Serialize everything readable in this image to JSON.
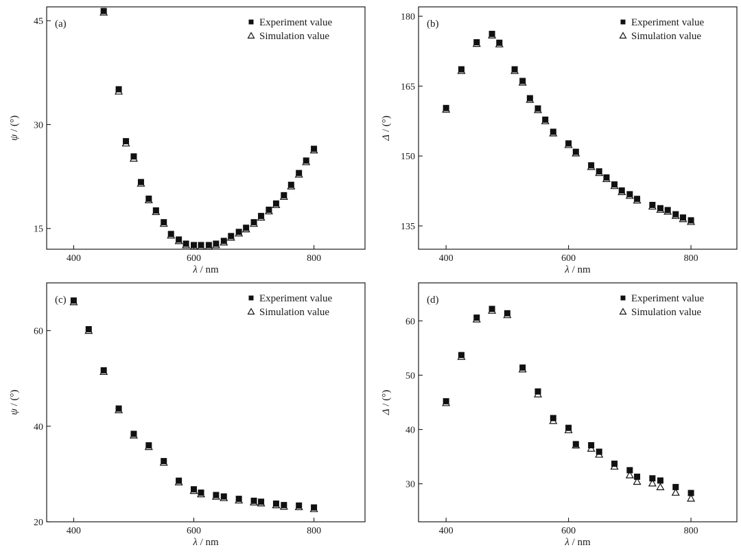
{
  "chart_data": [
    {
      "type": "scatter",
      "panel_label": "(a)",
      "xlabel_var": "λ",
      "xlabel_unit": " / nm",
      "ylabel_var": "ψ",
      "ylabel_unit": " / (°)",
      "xlim": [
        355,
        885
      ],
      "ylim": [
        12,
        47
      ],
      "xticks": [
        400,
        600,
        800
      ],
      "yticks": [
        15,
        30,
        45
      ],
      "legend_position": "top-right",
      "series": [
        {
          "name": "Experiment value",
          "marker": "square",
          "x": [
            450,
            475,
            487,
            500,
            512,
            525,
            537,
            550,
            562,
            575,
            587,
            600,
            612,
            625,
            637,
            650,
            662,
            675,
            687,
            700,
            712,
            725,
            737,
            750,
            762,
            775,
            787,
            800
          ],
          "y": [
            46.4,
            35.1,
            27.6,
            25.4,
            21.7,
            19.3,
            17.6,
            15.9,
            14.2,
            13.4,
            12.8,
            12.6,
            12.6,
            12.6,
            12.8,
            13.2,
            13.9,
            14.5,
            15.1,
            15.9,
            16.8,
            17.7,
            18.6,
            19.8,
            21.3,
            23.0,
            24.8,
            26.5
          ]
        },
        {
          "name": "Simulation value",
          "marker": "triangle",
          "x": [
            450,
            475,
            487,
            500,
            512,
            525,
            537,
            550,
            562,
            575,
            587,
            600,
            612,
            625,
            637,
            650,
            662,
            675,
            687,
            700,
            712,
            725,
            737,
            750,
            762,
            775,
            787,
            800
          ],
          "y": [
            46.2,
            34.8,
            27.3,
            25.1,
            21.5,
            19.1,
            17.4,
            15.7,
            14.0,
            13.2,
            12.6,
            12.4,
            12.4,
            12.4,
            12.6,
            13.0,
            13.7,
            14.3,
            14.9,
            15.7,
            16.6,
            17.5,
            18.4,
            19.6,
            21.1,
            22.8,
            24.6,
            26.3
          ]
        }
      ]
    },
    {
      "type": "scatter",
      "panel_label": "(b)",
      "xlabel_var": "λ",
      "xlabel_unit": " / nm",
      "ylabel_var": "Δ",
      "ylabel_unit": " / (°)",
      "xlim": [
        355,
        875
      ],
      "ylim": [
        130,
        182
      ],
      "xticks": [
        400,
        600,
        800
      ],
      "yticks": [
        135,
        150,
        165,
        180
      ],
      "legend_position": "top-right",
      "series": [
        {
          "name": "Experiment value",
          "marker": "square",
          "x": [
            400,
            425,
            450,
            475,
            487,
            512,
            525,
            537,
            550,
            562,
            575,
            600,
            612,
            637,
            650,
            662,
            675,
            687,
            700,
            712,
            737,
            750,
            762,
            775,
            787,
            800
          ],
          "y": [
            160.3,
            168.6,
            174.4,
            176.2,
            174.3,
            168.6,
            166.1,
            162.4,
            160.2,
            157.8,
            155.2,
            152.7,
            150.9,
            148.0,
            146.7,
            145.4,
            143.9,
            142.6,
            141.8,
            140.8,
            139.5,
            138.8,
            138.4,
            137.5,
            136.8,
            136.2
          ]
        },
        {
          "name": "Simulation value",
          "marker": "triangle",
          "x": [
            400,
            425,
            450,
            475,
            487,
            512,
            525,
            537,
            550,
            562,
            575,
            600,
            612,
            637,
            650,
            662,
            675,
            687,
            700,
            712,
            737,
            750,
            762,
            775,
            787,
            800
          ],
          "y": [
            160.0,
            168.3,
            174.1,
            175.9,
            174.0,
            168.3,
            165.8,
            162.1,
            159.9,
            157.5,
            154.9,
            152.4,
            150.6,
            147.7,
            146.4,
            145.1,
            143.6,
            142.3,
            141.5,
            140.5,
            139.2,
            138.5,
            138.1,
            137.2,
            136.5,
            135.9
          ]
        }
      ]
    },
    {
      "type": "scatter",
      "panel_label": "(c)",
      "xlabel_var": "λ",
      "xlabel_unit": " / nm",
      "ylabel_var": "ψ",
      "ylabel_unit": " / (°)",
      "xlim": [
        355,
        885
      ],
      "ylim": [
        20,
        70
      ],
      "xticks": [
        400,
        600,
        800
      ],
      "yticks": [
        20,
        40,
        60
      ],
      "legend_position": "top-right",
      "series": [
        {
          "name": "Experiment value",
          "marker": "square",
          "x": [
            400,
            425,
            450,
            475,
            500,
            525,
            550,
            575,
            600,
            612,
            637,
            650,
            675,
            700,
            712,
            737,
            750,
            775,
            800
          ],
          "y": [
            66.3,
            60.3,
            51.7,
            43.7,
            38.4,
            36.0,
            32.7,
            28.6,
            26.8,
            26.1,
            25.6,
            25.3,
            24.8,
            24.4,
            24.2,
            23.8,
            23.5,
            23.4,
            23.0
          ]
        },
        {
          "name": "Simulation value",
          "marker": "triangle",
          "x": [
            400,
            425,
            450,
            475,
            500,
            525,
            550,
            575,
            600,
            612,
            637,
            650,
            675,
            700,
            712,
            737,
            750,
            775,
            800
          ],
          "y": [
            66.0,
            60.0,
            51.4,
            43.4,
            38.1,
            35.7,
            32.4,
            28.3,
            26.5,
            25.8,
            25.3,
            25.0,
            24.5,
            24.1,
            23.9,
            23.5,
            23.2,
            23.1,
            22.7
          ]
        }
      ]
    },
    {
      "type": "scatter",
      "panel_label": "(d)",
      "xlabel_var": "λ",
      "xlabel_unit": " / nm",
      "ylabel_var": "Δ",
      "ylabel_unit": " / (°)",
      "xlim": [
        355,
        875
      ],
      "ylim": [
        23,
        67
      ],
      "xticks": [
        400,
        600,
        800
      ],
      "yticks": [
        30,
        40,
        50,
        60
      ],
      "legend_position": "top-right",
      "series": [
        {
          "name": "Experiment value",
          "marker": "square",
          "x": [
            400,
            425,
            450,
            475,
            500,
            525,
            550,
            575,
            600,
            612,
            637,
            650,
            675,
            700,
            712,
            737,
            750,
            775,
            800
          ],
          "y": [
            45.2,
            53.7,
            60.6,
            62.2,
            61.4,
            51.4,
            47.0,
            42.1,
            40.3,
            37.3,
            37.1,
            35.9,
            33.7,
            32.5,
            31.3,
            31.0,
            30.6,
            29.4,
            28.3
          ]
        },
        {
          "name": "Simulation value",
          "marker": "triangle",
          "x": [
            400,
            425,
            450,
            475,
            500,
            525,
            550,
            575,
            600,
            612,
            637,
            650,
            675,
            700,
            712,
            737,
            750,
            775,
            800
          ],
          "y": [
            44.9,
            53.4,
            60.3,
            61.9,
            61.1,
            51.1,
            46.5,
            41.6,
            39.9,
            37.1,
            36.5,
            35.4,
            33.2,
            31.6,
            30.4,
            30.1,
            29.4,
            28.4,
            27.3
          ]
        }
      ]
    }
  ]
}
